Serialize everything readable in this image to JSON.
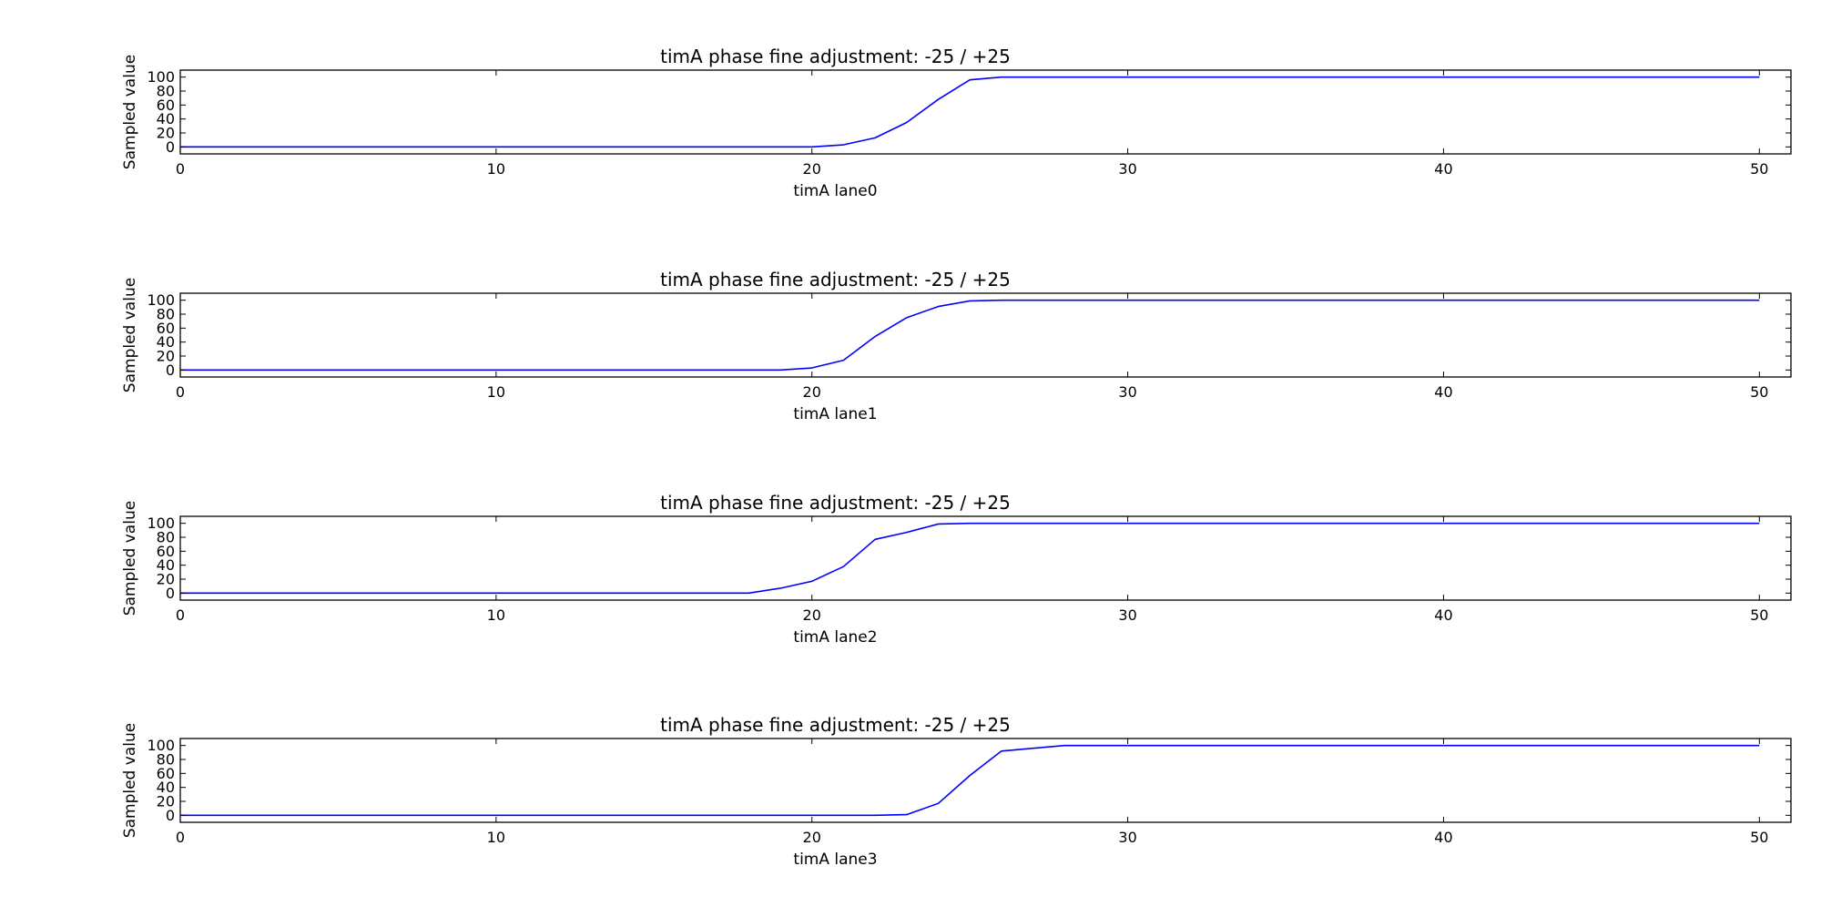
{
  "chart_data": [
    {
      "type": "line",
      "title": "timA phase fine adjustment: -25 / +25",
      "xlabel": "timA lane0",
      "ylabel": "Sampled value",
      "xlim": [
        0,
        51
      ],
      "ylim": [
        -10,
        110
      ],
      "xticks": [
        0,
        10,
        20,
        30,
        40,
        50
      ],
      "yticks": [
        0,
        20,
        40,
        60,
        80,
        100
      ],
      "grid": false,
      "color": "#0000ff",
      "x": [
        0,
        1,
        2,
        3,
        4,
        5,
        6,
        7,
        8,
        9,
        10,
        11,
        12,
        13,
        14,
        15,
        16,
        17,
        18,
        19,
        20,
        21,
        22,
        23,
        24,
        25,
        26,
        27,
        28,
        29,
        30,
        31,
        32,
        33,
        34,
        35,
        36,
        37,
        38,
        39,
        40,
        41,
        42,
        43,
        44,
        45,
        46,
        47,
        48,
        49,
        50
      ],
      "y": [
        0,
        0,
        0,
        0,
        0,
        0,
        0,
        0,
        0,
        0,
        0,
        0,
        0,
        0,
        0,
        0,
        0,
        0,
        0,
        0,
        0,
        3,
        13,
        35,
        68,
        96,
        100,
        100,
        100,
        100,
        100,
        100,
        100,
        100,
        100,
        100,
        100,
        100,
        100,
        100,
        100,
        100,
        100,
        100,
        100,
        100,
        100,
        100,
        100,
        100,
        100
      ]
    },
    {
      "type": "line",
      "title": "timA phase fine adjustment: -25 / +25",
      "xlabel": "timA lane1",
      "ylabel": "Sampled value",
      "xlim": [
        0,
        51
      ],
      "ylim": [
        -10,
        110
      ],
      "xticks": [
        0,
        10,
        20,
        30,
        40,
        50
      ],
      "yticks": [
        0,
        20,
        40,
        60,
        80,
        100
      ],
      "grid": false,
      "color": "#0000ff",
      "x": [
        0,
        1,
        2,
        3,
        4,
        5,
        6,
        7,
        8,
        9,
        10,
        11,
        12,
        13,
        14,
        15,
        16,
        17,
        18,
        19,
        20,
        21,
        22,
        23,
        24,
        25,
        26,
        27,
        28,
        29,
        30,
        31,
        32,
        33,
        34,
        35,
        36,
        37,
        38,
        39,
        40,
        41,
        42,
        43,
        44,
        45,
        46,
        47,
        48,
        49,
        50
      ],
      "y": [
        0,
        0,
        0,
        0,
        0,
        0,
        0,
        0,
        0,
        0,
        0,
        0,
        0,
        0,
        0,
        0,
        0,
        0,
        0,
        0,
        3,
        14,
        48,
        75,
        91,
        99,
        100,
        100,
        100,
        100,
        100,
        100,
        100,
        100,
        100,
        100,
        100,
        100,
        100,
        100,
        100,
        100,
        100,
        100,
        100,
        100,
        100,
        100,
        100,
        100,
        100
      ]
    },
    {
      "type": "line",
      "title": "timA phase fine adjustment: -25 / +25",
      "xlabel": "timA lane2",
      "ylabel": "Sampled value",
      "xlim": [
        0,
        51
      ],
      "ylim": [
        -10,
        110
      ],
      "xticks": [
        0,
        10,
        20,
        30,
        40,
        50
      ],
      "yticks": [
        0,
        20,
        40,
        60,
        80,
        100
      ],
      "grid": false,
      "color": "#0000ff",
      "x": [
        0,
        1,
        2,
        3,
        4,
        5,
        6,
        7,
        8,
        9,
        10,
        11,
        12,
        13,
        14,
        15,
        16,
        17,
        18,
        19,
        20,
        21,
        22,
        23,
        24,
        25,
        26,
        27,
        28,
        29,
        30,
        31,
        32,
        33,
        34,
        35,
        36,
        37,
        38,
        39,
        40,
        41,
        42,
        43,
        44,
        45,
        46,
        47,
        48,
        49,
        50
      ],
      "y": [
        0,
        0,
        0,
        0,
        0,
        0,
        0,
        0,
        0,
        0,
        0,
        0,
        0,
        0,
        0,
        0,
        0,
        0,
        0,
        7,
        17,
        38,
        77,
        87,
        99,
        100,
        100,
        100,
        100,
        100,
        100,
        100,
        100,
        100,
        100,
        100,
        100,
        100,
        100,
        100,
        100,
        100,
        100,
        100,
        100,
        100,
        100,
        100,
        100,
        100,
        100
      ]
    },
    {
      "type": "line",
      "title": "timA phase fine adjustment: -25 / +25",
      "xlabel": "timA lane3",
      "ylabel": "Sampled value",
      "xlim": [
        0,
        51
      ],
      "ylim": [
        -10,
        110
      ],
      "xticks": [
        0,
        10,
        20,
        30,
        40,
        50
      ],
      "yticks": [
        0,
        20,
        40,
        60,
        80,
        100
      ],
      "grid": false,
      "color": "#0000ff",
      "x": [
        0,
        1,
        2,
        3,
        4,
        5,
        6,
        7,
        8,
        9,
        10,
        11,
        12,
        13,
        14,
        15,
        16,
        17,
        18,
        19,
        20,
        21,
        22,
        23,
        24,
        25,
        26,
        27,
        28,
        29,
        30,
        31,
        32,
        33,
        34,
        35,
        36,
        37,
        38,
        39,
        40,
        41,
        42,
        43,
        44,
        45,
        46,
        47,
        48,
        49,
        50
      ],
      "y": [
        0,
        0,
        0,
        0,
        0,
        0,
        0,
        0,
        0,
        0,
        0,
        0,
        0,
        0,
        0,
        0,
        0,
        0,
        0,
        0,
        0,
        0,
        0,
        1,
        17,
        57,
        92,
        96,
        100,
        100,
        100,
        100,
        100,
        100,
        100,
        100,
        100,
        100,
        100,
        100,
        100,
        100,
        100,
        100,
        100,
        100,
        100,
        100,
        100,
        100,
        100
      ]
    }
  ]
}
